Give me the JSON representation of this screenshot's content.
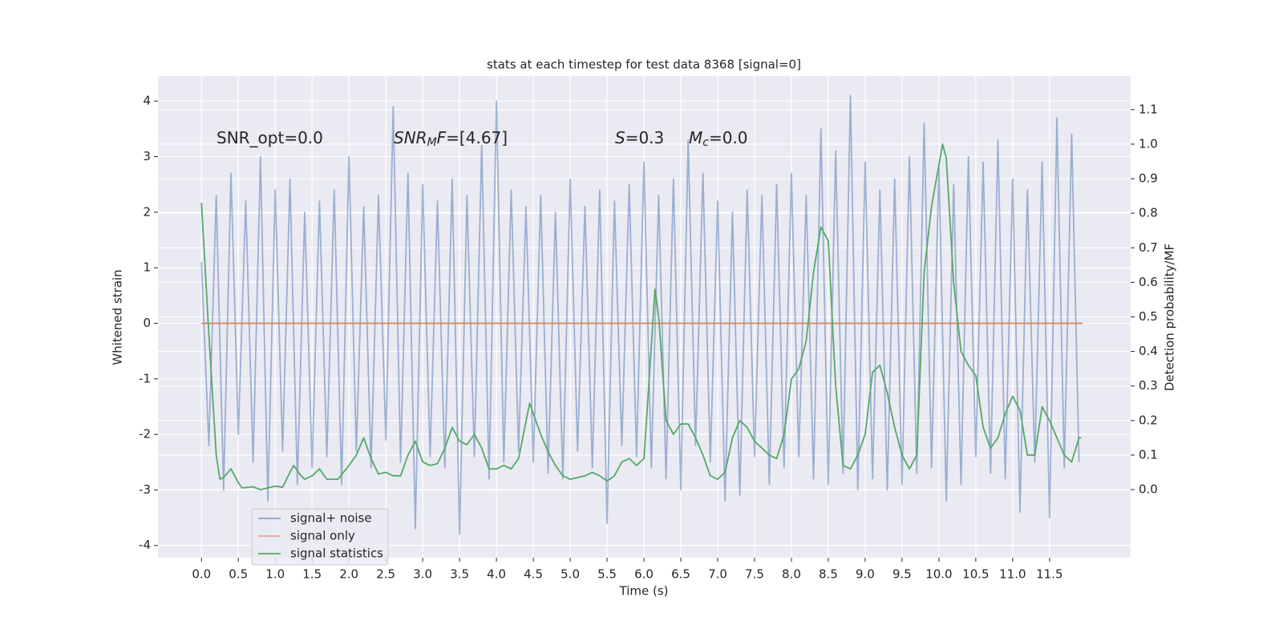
{
  "chart_data": {
    "type": "line",
    "title": "stats at each timestep for test data 8368 [signal=0]",
    "x_label": "Time (s)",
    "y_label": "Whitened strain",
    "y2_label": "Detection probability/MF",
    "grid": true,
    "legend": "lower left",
    "xlim": [
      -0.59,
      12.6
    ],
    "ylim": [
      -4.22,
      4.45
    ],
    "y2lim": [
      -0.197,
      1.197
    ],
    "xticks": [
      {
        "value": 0,
        "label": "0.0"
      },
      0.5,
      {
        "value": 1,
        "label": "1.0"
      },
      1.5,
      {
        "value": 2,
        "label": "2.0"
      },
      2.5,
      {
        "value": 3,
        "label": "3.0"
      },
      3.5,
      {
        "value": 4,
        "label": "4.0"
      },
      4.5,
      {
        "value": 5,
        "label": "5.0"
      },
      5.5,
      {
        "value": 6,
        "label": "6.0"
      },
      6.5,
      {
        "value": 7,
        "label": "7.0"
      },
      7.5,
      {
        "value": 8,
        "label": "8.0"
      },
      8.5,
      {
        "value": 9,
        "label": "9.0"
      },
      9.5,
      {
        "value": 10,
        "label": "10.0"
      },
      10.5,
      {
        "value": 11,
        "label": "11.0"
      },
      11.5
    ],
    "yticks": [
      -4,
      -3,
      -2,
      -1,
      0,
      1,
      2,
      3,
      4
    ],
    "y2ticks": [
      {
        "value": 0,
        "label": "0.0"
      },
      0.1,
      0.2,
      0.3,
      0.4,
      0.5,
      0.6,
      0.7,
      0.8,
      0.9,
      {
        "value": 1,
        "label": "1.0"
      },
      1.1
    ],
    "annotations": [
      [
        {
          "text": "SNR_opt=0.0"
        }
      ],
      [
        {
          "text": "SNR",
          "style": "italic"
        },
        {
          "text": "M",
          "style": "italic-sub"
        },
        {
          "text": "F",
          "style": "italic"
        },
        {
          "text": "=[4.67]"
        }
      ],
      [
        {
          "text": "S",
          "style": "italic"
        },
        {
          "text": "=0.3"
        }
      ],
      [
        {
          "text": "M",
          "style": "italic"
        },
        {
          "text": "c",
          "style": "italic-sub"
        },
        {
          "text": "=0.0"
        }
      ]
    ],
    "series": [
      {
        "name": "signal+ noise",
        "color": "#4c72b0",
        "x": [
          0.0,
          0.1,
          0.2,
          0.3,
          0.4,
          0.5,
          0.6,
          0.7,
          0.8,
          0.9,
          1.0,
          1.1,
          1.2,
          1.3,
          1.4,
          1.5,
          1.6,
          1.7,
          1.8,
          1.9,
          2.0,
          2.1,
          2.2,
          2.3,
          2.4,
          2.5,
          2.6,
          2.7,
          2.8,
          2.9,
          3.0,
          3.1,
          3.2,
          3.3,
          3.4,
          3.5,
          3.6,
          3.7,
          3.8,
          3.9,
          4.0,
          4.1,
          4.2,
          4.3,
          4.4,
          4.5,
          4.6,
          4.7,
          4.8,
          4.9,
          5.0,
          5.1,
          5.2,
          5.3,
          5.4,
          5.5,
          5.6,
          5.7,
          5.8,
          5.9,
          6.0,
          6.1,
          6.2,
          6.3,
          6.4,
          6.5,
          6.6,
          6.7,
          6.8,
          6.9,
          7.0,
          7.1,
          7.2,
          7.3,
          7.4,
          7.5,
          7.6,
          7.7,
          7.8,
          7.9,
          8.0,
          8.1,
          8.2,
          8.3,
          8.4,
          8.5,
          8.6,
          8.7,
          8.8,
          8.9,
          9.0,
          9.1,
          9.2,
          9.3,
          9.4,
          9.5,
          9.6,
          9.7,
          9.8,
          9.9,
          10.0,
          10.1,
          10.2,
          10.3,
          10.4,
          10.5,
          10.6,
          10.7,
          10.8,
          10.9,
          11.0,
          11.1,
          11.2,
          11.3,
          11.4,
          11.5,
          11.6,
          11.7,
          11.8,
          11.9
        ],
        "values": [
          1.1,
          -2.2,
          2.3,
          -3.0,
          2.7,
          -2.0,
          2.2,
          -2.5,
          3.0,
          -3.2,
          2.4,
          -2.3,
          2.6,
          -2.9,
          2.0,
          -2.6,
          2.2,
          -2.4,
          2.4,
          -2.9,
          3.0,
          -2.3,
          2.1,
          -2.6,
          2.3,
          -2.1,
          3.9,
          -2.5,
          2.7,
          -3.7,
          2.5,
          -2.4,
          2.2,
          -2.6,
          2.6,
          -3.8,
          2.3,
          -2.4,
          3.2,
          -2.8,
          4.0,
          -2.5,
          2.4,
          -2.3,
          2.1,
          -2.5,
          2.3,
          -2.7,
          2.0,
          -2.8,
          2.6,
          -2.3,
          2.1,
          -2.6,
          2.4,
          -3.6,
          2.2,
          -2.2,
          2.5,
          -2.4,
          2.9,
          -2.6,
          2.3,
          -2.8,
          2.6,
          -3.0,
          3.3,
          -2.2,
          2.7,
          -2.5,
          2.2,
          -3.2,
          2.0,
          -3.1,
          2.4,
          -2.4,
          2.3,
          -2.9,
          2.5,
          -2.6,
          2.7,
          -2.4,
          2.3,
          -2.8,
          3.5,
          -2.9,
          3.1,
          -2.7,
          4.1,
          -3.0,
          2.9,
          -2.8,
          2.4,
          -3.0,
          2.6,
          -2.9,
          3.0,
          -2.7,
          3.6,
          -2.6,
          2.8,
          -3.2,
          2.5,
          -2.9,
          3.0,
          -2.4,
          2.9,
          -2.7,
          3.3,
          -2.8,
          2.6,
          -3.4,
          2.4,
          -2.5,
          2.9,
          -3.5,
          3.7,
          -2.6,
          3.4,
          -2.5
        ]
      },
      {
        "name": "signal only",
        "color": "#dd8452",
        "x": [
          0.0,
          11.95
        ],
        "values": [
          0,
          0
        ]
      },
      {
        "name": "signal statistics",
        "color": "#55a868",
        "axis": "y2",
        "x": [
          0,
          0.1,
          0.2,
          0.25,
          0.3,
          0.4,
          0.5,
          0.55,
          0.7,
          0.8,
          1.0,
          1.1,
          1.2,
          1.25,
          1.35,
          1.4,
          1.5,
          1.6,
          1.7,
          1.85,
          2.0,
          2.1,
          2.2,
          2.3,
          2.4,
          2.5,
          2.6,
          2.7,
          2.8,
          2.9,
          3.0,
          3.1,
          3.2,
          3.3,
          3.4,
          3.5,
          3.6,
          3.7,
          3.8,
          3.9,
          4.0,
          4.1,
          4.2,
          4.3,
          4.45,
          4.6,
          4.7,
          4.8,
          4.9,
          5.0,
          5.2,
          5.3,
          5.4,
          5.5,
          5.6,
          5.7,
          5.8,
          5.9,
          6.0,
          6.05,
          6.15,
          6.2,
          6.3,
          6.4,
          6.5,
          6.6,
          6.7,
          6.8,
          6.9,
          7.0,
          7.1,
          7.2,
          7.3,
          7.4,
          7.5,
          7.6,
          7.7,
          7.8,
          7.9,
          8.0,
          8.1,
          8.2,
          8.3,
          8.4,
          8.5,
          8.6,
          8.7,
          8.8,
          8.9,
          9.0,
          9.1,
          9.2,
          9.3,
          9.4,
          9.5,
          9.6,
          9.7,
          9.8,
          9.9,
          10.05,
          10.1,
          10.2,
          10.3,
          10.4,
          10.5,
          10.6,
          10.7,
          10.8,
          10.9,
          11.0,
          11.1,
          11.2,
          11.3,
          11.4,
          11.5,
          11.6,
          11.7,
          11.8,
          11.9,
          11.93
        ],
        "values": [
          0.83,
          0.45,
          0.1,
          0.03,
          0.035,
          0.06,
          0.02,
          0.005,
          0.008,
          0.0,
          0.01,
          0.007,
          0.05,
          0.07,
          0.04,
          0.03,
          0.04,
          0.06,
          0.03,
          0.03,
          0.07,
          0.1,
          0.15,
          0.09,
          0.045,
          0.05,
          0.04,
          0.04,
          0.1,
          0.14,
          0.08,
          0.07,
          0.075,
          0.12,
          0.18,
          0.14,
          0.13,
          0.16,
          0.12,
          0.06,
          0.06,
          0.07,
          0.06,
          0.09,
          0.25,
          0.16,
          0.11,
          0.07,
          0.04,
          0.03,
          0.04,
          0.05,
          0.04,
          0.025,
          0.04,
          0.08,
          0.09,
          0.07,
          0.09,
          0.25,
          0.58,
          0.5,
          0.2,
          0.16,
          0.19,
          0.19,
          0.15,
          0.1,
          0.04,
          0.03,
          0.05,
          0.15,
          0.2,
          0.18,
          0.14,
          0.12,
          0.1,
          0.09,
          0.16,
          0.32,
          0.35,
          0.43,
          0.63,
          0.76,
          0.72,
          0.3,
          0.07,
          0.06,
          0.1,
          0.16,
          0.34,
          0.36,
          0.28,
          0.18,
          0.1,
          0.06,
          0.1,
          0.63,
          0.82,
          1.0,
          0.96,
          0.6,
          0.4,
          0.36,
          0.33,
          0.18,
          0.12,
          0.15,
          0.22,
          0.27,
          0.23,
          0.1,
          0.1,
          0.24,
          0.2,
          0.15,
          0.1,
          0.08,
          0.15,
          0.15
        ]
      }
    ]
  }
}
